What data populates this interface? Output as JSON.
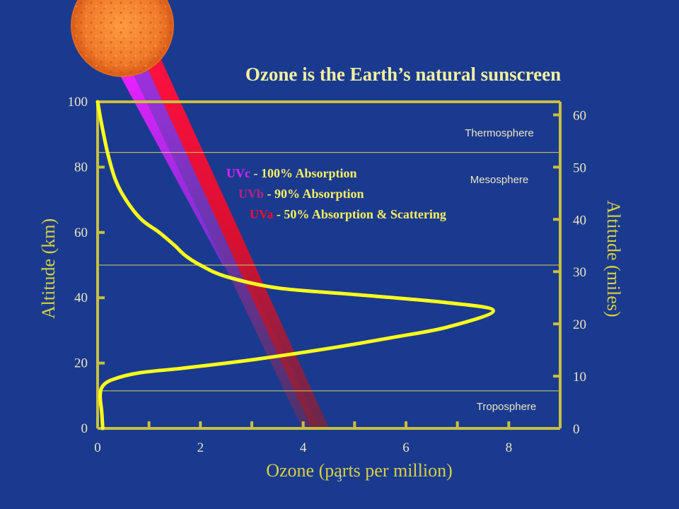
{
  "chart_data": {
    "type": "line",
    "title": "Ozone is the Earth’s natural sunscreen",
    "xlabel": "Ozone (parts per million)",
    "ylabel": "Altitude (km)",
    "y2label": "Altitude (miles)",
    "xlim": [
      0,
      9
    ],
    "ylim": [
      0,
      100
    ],
    "y2lim": [
      0,
      62.5
    ],
    "x_ticks": [
      0,
      2,
      4,
      6,
      8
    ],
    "x_minor_ticks": [
      1,
      3,
      5,
      7
    ],
    "y_ticks": [
      0,
      20,
      40,
      60,
      80,
      100
    ],
    "y2_ticks": [
      0,
      10,
      20,
      30,
      40,
      50,
      60
    ],
    "grid": false,
    "series": [
      {
        "color": "#ffff1a",
        "x": [
          0.1,
          0.08,
          0.05,
          0.1,
          0.3,
          0.8,
          1.7,
          3.0,
          4.5,
          5.8,
          6.8,
          7.7,
          6.8,
          5.0,
          3.5,
          2.5,
          2.0,
          1.7,
          1.5,
          1.2,
          0.85,
          0.55,
          0.35,
          0.2,
          0.08,
          0.0
        ],
        "y": [
          0,
          5,
          10,
          13,
          15,
          17,
          18.5,
          21,
          24.5,
          28,
          31,
          36,
          38.5,
          41,
          43,
          46.5,
          50,
          53,
          56,
          60,
          64,
          70,
          76,
          84,
          93,
          100
        ]
      }
    ],
    "layers": [
      {
        "name": "Thermosphere",
        "boundary_km": 84.5
      },
      {
        "name": "Mesosphere",
        "boundary_km": 50
      },
      {
        "name": "Troposphere",
        "boundary_km": 11.5
      }
    ],
    "beams": [
      {
        "prefix": "UVc",
        "text": " - 100% Absorption",
        "color": "#e020ff",
        "end_km": 50
      },
      {
        "prefix": "UVb",
        "text": " - 90% Absorption",
        "color": "#c02080",
        "end_km": 0
      },
      {
        "prefix": "UVa",
        "text": " - 50% Absorption & Scattering",
        "color": "#ff0830",
        "end_km": 0
      }
    ],
    "page_number": "3"
  }
}
